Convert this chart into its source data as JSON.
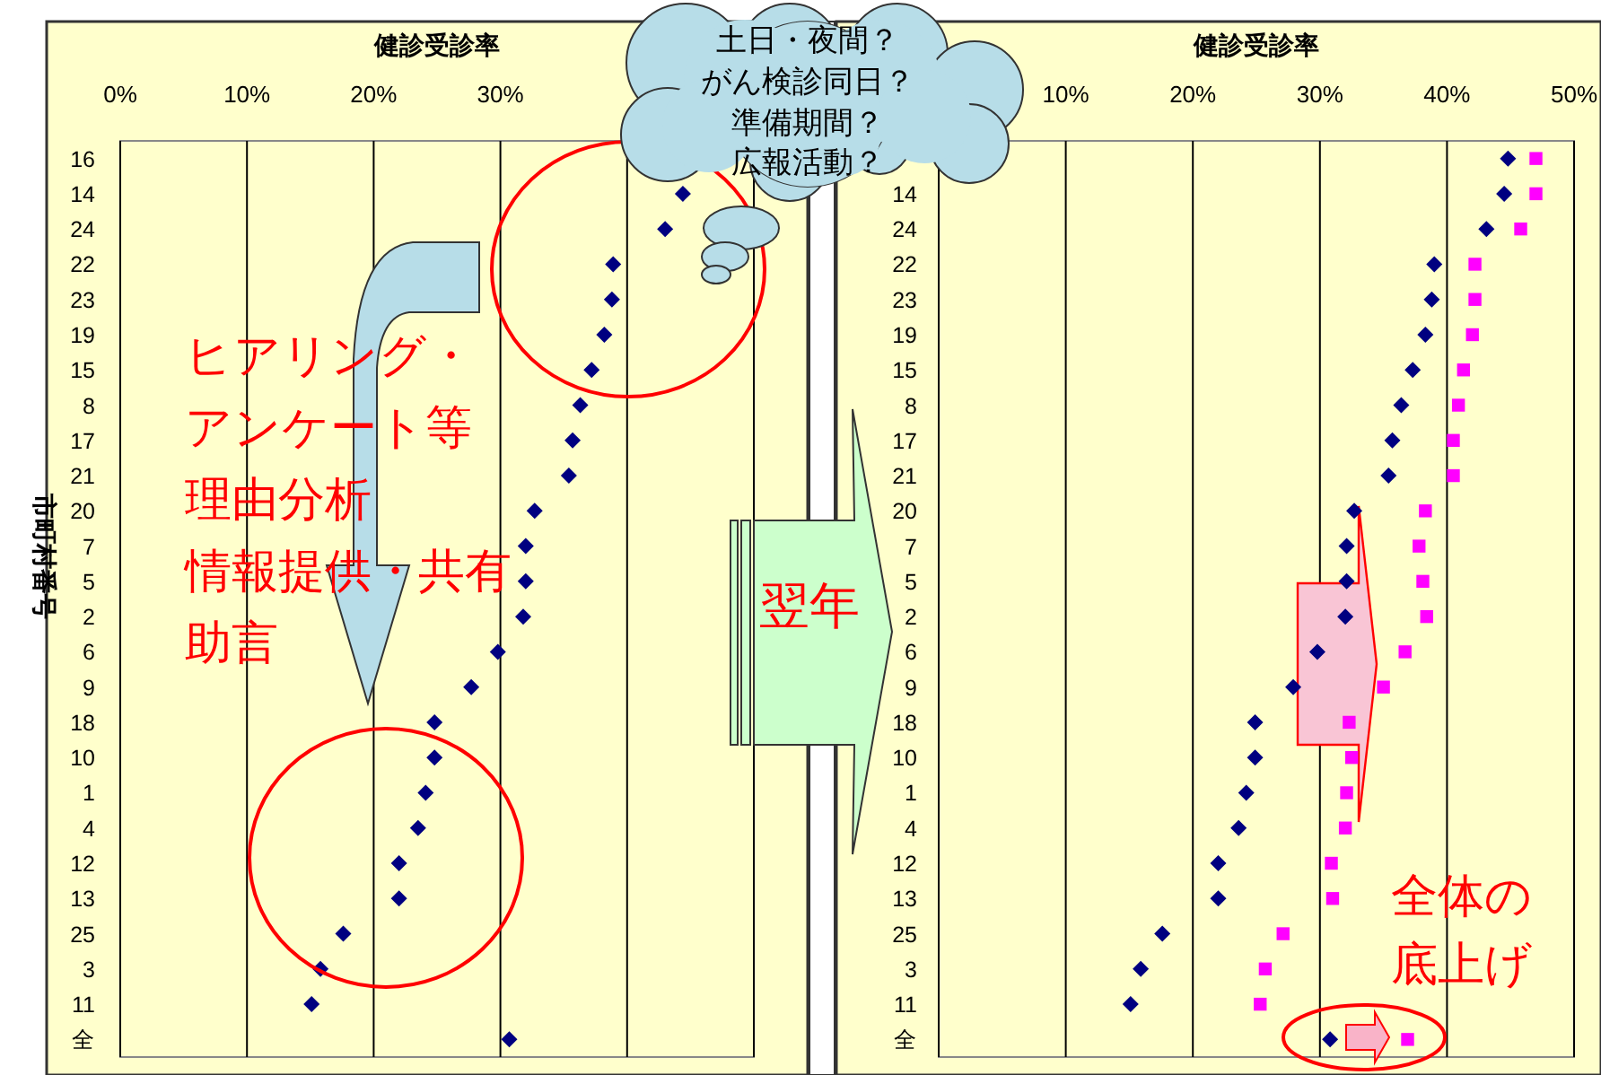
{
  "chart_data": [
    {
      "type": "scatter",
      "orientation": "horizontal",
      "xlabel": "健診受診率",
      "ylabel": "市町村番号",
      "categories": [
        "16",
        "14",
        "24",
        "22",
        "23",
        "19",
        "15",
        "8",
        "17",
        "21",
        "20",
        "7",
        "5",
        "2",
        "6",
        "9",
        "18",
        "10",
        "1",
        "4",
        "12",
        "13",
        "25",
        "3",
        "11",
        "全"
      ],
      "xlim": [
        0,
        50
      ],
      "xticks": [
        {
          "value": 0,
          "label": "0%"
        },
        {
          "value": 10,
          "label": "10%"
        },
        {
          "value": 20,
          "label": "20%"
        },
        {
          "value": 30,
          "label": "30%"
        },
        {
          "value": 40,
          "label": null
        },
        {
          "value": 50,
          "label": null
        }
      ],
      "grid": "x",
      "series": [
        {
          "color": "#000080",
          "marker": "diamond",
          "values": [
            null,
            44.4,
            43.0,
            38.9,
            38.8,
            38.2,
            37.2,
            36.3,
            35.7,
            35.4,
            32.7,
            32.0,
            32.0,
            31.8,
            29.8,
            27.7,
            24.8,
            24.8,
            24.1,
            23.5,
            22.0,
            22.0,
            17.6,
            15.8,
            15.1,
            30.7
          ]
        }
      ],
      "annotations": [
        "ヒアリング・",
        "アンケート等",
        "理由分析",
        "情報提供・共有",
        "助言"
      ]
    },
    {
      "type": "scatter",
      "orientation": "horizontal",
      "xlabel": "健診受診率",
      "categories": [
        null,
        "14",
        "24",
        "22",
        "23",
        "19",
        "15",
        "8",
        "17",
        "21",
        "20",
        "7",
        "5",
        "2",
        "6",
        "9",
        "18",
        "10",
        "1",
        "4",
        "12",
        "13",
        "25",
        "3",
        "11",
        "全"
      ],
      "xlim": [
        0,
        50
      ],
      "xticks": [
        {
          "value": 0,
          "label": null
        },
        {
          "value": 10,
          "label": "10%"
        },
        {
          "value": 20,
          "label": "20%"
        },
        {
          "value": 30,
          "label": "30%"
        },
        {
          "value": 40,
          "label": "40%"
        },
        {
          "value": 50,
          "label": "50%"
        }
      ],
      "grid": "x",
      "series": [
        {
          "color": "#000080",
          "marker": "diamond",
          "values": [
            44.8,
            44.5,
            43.1,
            39.0,
            38.8,
            38.3,
            37.3,
            36.4,
            35.7,
            35.4,
            32.7,
            32.1,
            32.1,
            32.0,
            29.8,
            27.9,
            24.9,
            24.9,
            24.2,
            23.6,
            22.0,
            22.0,
            17.6,
            15.9,
            15.1,
            30.8
          ]
        },
        {
          "color": "#ff00ff",
          "marker": "square",
          "values": [
            47.0,
            47.0,
            45.8,
            42.2,
            42.2,
            42.0,
            41.3,
            40.9,
            40.5,
            40.5,
            38.3,
            37.8,
            38.1,
            38.4,
            36.7,
            35.0,
            32.3,
            32.5,
            32.1,
            32.0,
            30.9,
            31.0,
            27.1,
            25.7,
            25.3,
            36.9
          ]
        }
      ],
      "annotations": [
        "翌年",
        "土日・夜間？",
        "がん検診同日？",
        "準備期間？",
        "広報活動？",
        "全体の",
        "底上げ"
      ]
    }
  ]
}
